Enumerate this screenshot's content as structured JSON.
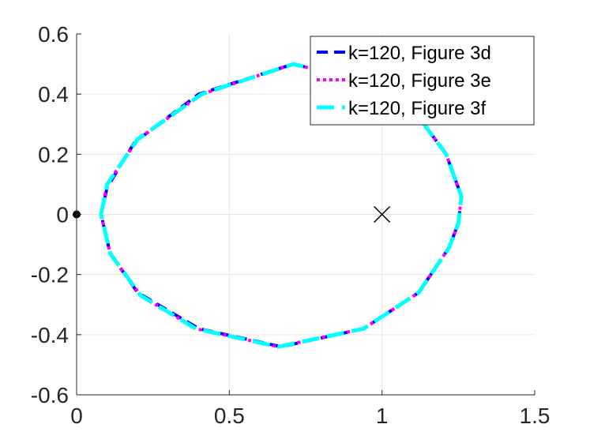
{
  "chart_data": {
    "type": "line",
    "title": "",
    "xlabel": "",
    "ylabel": "",
    "xlim": [
      0,
      1.5
    ],
    "ylim": [
      -0.6,
      0.6
    ],
    "x_ticks": [
      0,
      0.5,
      1,
      1.5
    ],
    "x_tick_labels": [
      "0",
      "0.5",
      "1",
      "1.5"
    ],
    "y_ticks": [
      -0.6,
      -0.4,
      -0.2,
      0,
      0.2,
      0.4,
      0.6
    ],
    "y_tick_labels": [
      "-0.6",
      "-0.4",
      "-0.2",
      "0",
      "0.2",
      "0.4",
      "0.6"
    ],
    "grid": true,
    "legend_position": "top-right",
    "series": [
      {
        "name": "k=120, Figure 3d",
        "color": "#0000ff",
        "style": "dashed",
        "x": [
          0.08,
          0.1,
          0.19,
          0.4,
          0.71,
          0.95,
          1.13,
          1.21,
          1.26,
          1.25,
          1.22,
          1.12,
          0.94,
          0.67,
          0.4,
          0.2,
          0.11,
          0.08
        ],
        "y": [
          0,
          0.09,
          0.24,
          0.4,
          0.5,
          0.44,
          0.31,
          0.2,
          0.06,
          -0.03,
          -0.11,
          -0.26,
          -0.38,
          -0.44,
          -0.38,
          -0.26,
          -0.13,
          0
        ]
      },
      {
        "name": "k=120, Figure 3e",
        "color": "#ff00ff",
        "style": "dotted",
        "x": [
          0.08,
          0.1,
          0.2,
          0.41,
          0.71,
          0.95,
          1.13,
          1.21,
          1.26,
          1.25,
          1.22,
          1.12,
          0.94,
          0.66,
          0.39,
          0.21,
          0.11,
          0.08
        ],
        "y": [
          0,
          0.1,
          0.25,
          0.4,
          0.5,
          0.44,
          0.31,
          0.2,
          0.06,
          -0.03,
          -0.11,
          -0.26,
          -0.38,
          -0.44,
          -0.38,
          -0.27,
          -0.13,
          0
        ]
      },
      {
        "name": "k=120, Figure 3f",
        "color": "#00ffff",
        "style": "dash",
        "x": [
          0.08,
          0.1,
          0.2,
          0.41,
          0.71,
          0.95,
          1.13,
          1.21,
          1.26,
          1.25,
          1.22,
          1.12,
          0.94,
          0.66,
          0.39,
          0.21,
          0.11,
          0.08
        ],
        "y": [
          0,
          0.1,
          0.25,
          0.4,
          0.5,
          0.44,
          0.31,
          0.2,
          0.06,
          -0.03,
          -0.11,
          -0.26,
          -0.38,
          -0.44,
          -0.38,
          -0.27,
          -0.13,
          0
        ]
      }
    ],
    "markers": [
      {
        "type": "dot",
        "x": 0,
        "y": 0,
        "color": "#000000"
      },
      {
        "type": "cross",
        "x": 1,
        "y": 0,
        "color": "#000000"
      }
    ]
  }
}
